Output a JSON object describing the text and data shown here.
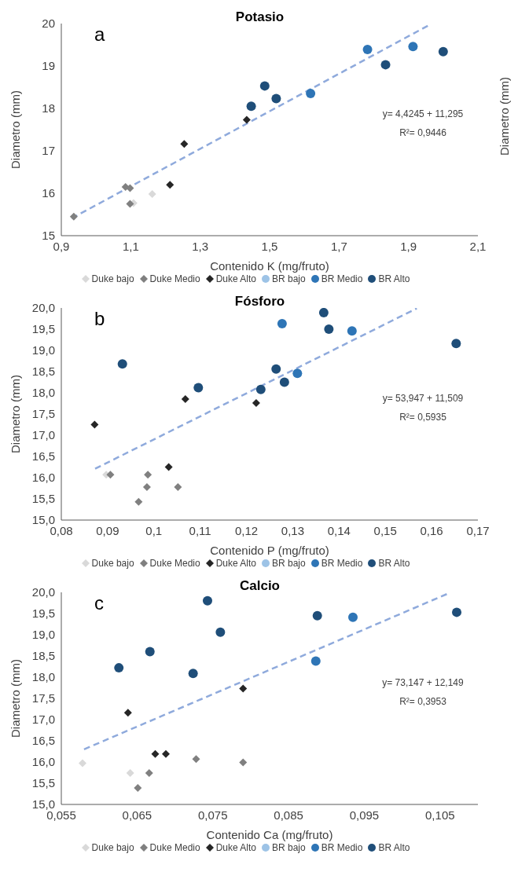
{
  "chart_data": [
    {
      "type": "scatter",
      "title": "Potasio",
      "xlabel": "Contenido K (mg/fruto)",
      "ylabel": "Diametro (mm)",
      "y2label": "Diametro (mm)",
      "annotations": [
        "a",
        "y= 4,4245 + 11,295",
        "R²= 0,9446"
      ],
      "xlim": [
        0.9,
        2.1
      ],
      "xticks": [
        {
          "value": 0.9,
          "label": "0,9"
        },
        {
          "value": 1.1,
          "label": "1,1"
        },
        {
          "value": 1.3,
          "label": "1,3"
        },
        {
          "value": 1.5,
          "label": "1,5"
        },
        {
          "value": 1.7,
          "label": "1,7"
        },
        {
          "value": 1.9,
          "label": "1,9"
        },
        {
          "value": 2.1,
          "label": "2,1"
        }
      ],
      "ylim": [
        15,
        20
      ],
      "yticks": [
        15,
        16,
        17,
        18,
        19,
        20
      ],
      "grid": false,
      "legend": "bottom",
      "series": [
        {
          "name": "Duke bajo",
          "color": "#d9d9d9",
          "marker": "diamond",
          "x": [
            1.108,
            1.162
          ],
          "values": [
            15.77,
            15.98
          ]
        },
        {
          "name": "Duke Medio",
          "color": "#808080",
          "marker": "diamond",
          "x": [
            0.936,
            1.085,
            1.098,
            1.098
          ],
          "values": [
            15.45,
            16.15,
            16.12,
            15.75
          ]
        },
        {
          "name": "Duke Alto",
          "color": "#262626",
          "marker": "diamond",
          "x": [
            1.213,
            1.254,
            1.434
          ],
          "values": [
            16.2,
            17.16,
            17.73
          ]
        },
        {
          "name": "BR bajo",
          "color": "#9dc3e6",
          "marker": "circle"
        },
        {
          "name": "BR Medio",
          "color": "#2e75b6",
          "marker": "circle",
          "x": [
            1.618,
            1.782,
            1.913
          ],
          "values": [
            18.35,
            19.39,
            19.46
          ]
        },
        {
          "name": "BR Alto",
          "color": "#1f4e79",
          "marker": "circle",
          "x": [
            1.447,
            1.486,
            1.519,
            1.834,
            2.0
          ],
          "values": [
            18.05,
            18.53,
            18.23,
            19.03,
            19.34
          ]
        },
        {
          "type": "line",
          "color": "#8faadc",
          "marker": "none",
          "line_style": "dashed",
          "x": [
            0.93,
            1.965
          ],
          "values": [
            15.41,
            19.99
          ]
        }
      ]
    },
    {
      "type": "scatter",
      "title": "Fósforo",
      "xlabel": "Contenido P (mg/fruto)",
      "ylabel": "Diametro (mm)",
      "annotations": [
        "b",
        "y= 53,947 + 11,509",
        "R²= 0,5935"
      ],
      "xlim": [
        0.08,
        0.17
      ],
      "xticks": [
        {
          "value": 0.08,
          "label": "0,08"
        },
        {
          "value": 0.09,
          "label": "0,09"
        },
        {
          "value": 0.1,
          "label": "0,1"
        },
        {
          "value": 0.11,
          "label": "0,11"
        },
        {
          "value": 0.12,
          "label": "0,12"
        },
        {
          "value": 0.13,
          "label": "0,13"
        },
        {
          "value": 0.14,
          "label": "0,14"
        },
        {
          "value": 0.15,
          "label": "0,15"
        },
        {
          "value": 0.16,
          "label": "0,16"
        },
        {
          "value": 0.17,
          "label": "0,17"
        }
      ],
      "ylim": [
        15,
        20
      ],
      "yticks": [
        {
          "value": 15,
          "label": "15,0"
        },
        {
          "value": 15.5,
          "label": "15,5"
        },
        {
          "value": 16,
          "label": "16,0"
        },
        {
          "value": 16.5,
          "label": "16,5"
        },
        {
          "value": 17,
          "label": "17,0"
        },
        {
          "value": 17.5,
          "label": "17,5"
        },
        {
          "value": 18,
          "label": "18,0"
        },
        {
          "value": 18.5,
          "label": "18,5"
        },
        {
          "value": 19,
          "label": "19,0"
        },
        {
          "value": 19.5,
          "label": "19,5"
        },
        {
          "value": 20,
          "label": "20,0"
        }
      ],
      "grid": false,
      "legend": "bottom",
      "series": [
        {
          "name": "Duke bajo",
          "color": "#d9d9d9",
          "marker": "diamond",
          "x": [
            0.0897
          ],
          "values": [
            16.07
          ]
        },
        {
          "name": "Duke Medio",
          "color": "#808080",
          "marker": "diamond",
          "x": [
            0.0906,
            0.0987,
            0.0985,
            0.0967,
            0.1052
          ],
          "values": [
            16.07,
            16.07,
            15.78,
            15.43,
            15.78
          ]
        },
        {
          "name": "Duke Alto",
          "color": "#262626",
          "marker": "diamond",
          "x": [
            0.0872,
            0.1068,
            0.1032,
            0.1221
          ],
          "values": [
            17.25,
            17.85,
            16.25,
            17.76
          ]
        },
        {
          "name": "BR bajo",
          "color": "#9dc3e6",
          "marker": "circle"
        },
        {
          "name": "BR Medio",
          "color": "#2e75b6",
          "marker": "circle",
          "x": [
            0.1277,
            0.131,
            0.1428
          ],
          "values": [
            19.63,
            18.46,
            19.46
          ]
        },
        {
          "name": "BR Alto",
          "color": "#1f4e79",
          "marker": "circle",
          "x": [
            0.0932,
            0.1096,
            0.1231,
            0.1264,
            0.1282,
            0.1367,
            0.1378,
            0.1653
          ],
          "values": [
            18.68,
            18.12,
            18.08,
            18.56,
            18.25,
            19.89,
            19.5,
            19.16
          ]
        },
        {
          "type": "line",
          "color": "#8faadc",
          "marker": "none",
          "line_style": "dashed",
          "x": [
            0.0873,
            0.1568
          ],
          "values": [
            16.21,
            19.99
          ]
        }
      ]
    },
    {
      "type": "scatter",
      "title": "Calcio",
      "xlabel": "Contenido Ca (mg/fruto)",
      "ylabel": "Diametro (mm)",
      "annotations": [
        "c",
        "y= 73,147 + 12,149",
        "R²= 0,3953"
      ],
      "xlim": [
        0.055,
        0.11
      ],
      "xticks": [
        {
          "value": 0.055,
          "label": "0,055"
        },
        {
          "value": 0.065,
          "label": "0,065"
        },
        {
          "value": 0.075,
          "label": "0,075"
        },
        {
          "value": 0.085,
          "label": "0,085"
        },
        {
          "value": 0.095,
          "label": "0,095"
        },
        {
          "value": 0.105,
          "label": "0,105"
        }
      ],
      "ylim": [
        15,
        20
      ],
      "yticks": [
        {
          "value": 15,
          "label": "15,0"
        },
        {
          "value": 15.5,
          "label": "15,5"
        },
        {
          "value": 16,
          "label": "16,0"
        },
        {
          "value": 16.5,
          "label": "16,5"
        },
        {
          "value": 17,
          "label": "17,0"
        },
        {
          "value": 17.5,
          "label": "17,5"
        },
        {
          "value": 18,
          "label": "18,0"
        },
        {
          "value": 18.5,
          "label": "18,5"
        },
        {
          "value": 19,
          "label": "19,0"
        },
        {
          "value": 19.5,
          "label": "19,5"
        },
        {
          "value": 20,
          "label": "20,0"
        }
      ],
      "grid": false,
      "legend": "bottom",
      "series": [
        {
          "name": "Duke bajo",
          "color": "#d9d9d9",
          "marker": "diamond",
          "x": [
            0.0578,
            0.0641
          ],
          "values": [
            15.97,
            15.74
          ]
        },
        {
          "name": "Duke Medio",
          "color": "#808080",
          "marker": "diamond",
          "x": [
            0.0651,
            0.0666,
            0.0728,
            0.079
          ],
          "values": [
            15.39,
            15.74,
            16.07,
            15.99
          ]
        },
        {
          "name": "Duke Alto",
          "color": "#262626",
          "marker": "diamond",
          "x": [
            0.0638,
            0.0674,
            0.0688,
            0.079
          ],
          "values": [
            17.16,
            16.19,
            16.19,
            17.73
          ]
        },
        {
          "name": "BR bajo",
          "color": "#9dc3e6",
          "marker": "circle"
        },
        {
          "name": "BR Medio",
          "color": "#2e75b6",
          "marker": "circle",
          "x": [
            0.0886,
            0.0935
          ],
          "values": [
            18.38,
            19.41
          ]
        },
        {
          "name": "BR Alto",
          "color": "#1f4e79",
          "marker": "circle",
          "x": [
            0.0626,
            0.0667,
            0.0724,
            0.0743,
            0.076,
            0.0888,
            0.1072
          ],
          "values": [
            18.22,
            18.6,
            18.09,
            19.8,
            19.06,
            19.45,
            19.53
          ]
        },
        {
          "type": "line",
          "color": "#8faadc",
          "marker": "none",
          "line_style": "dashed",
          "x": [
            0.058,
            0.1063
          ],
          "values": [
            16.3,
            19.99
          ]
        }
      ]
    }
  ]
}
